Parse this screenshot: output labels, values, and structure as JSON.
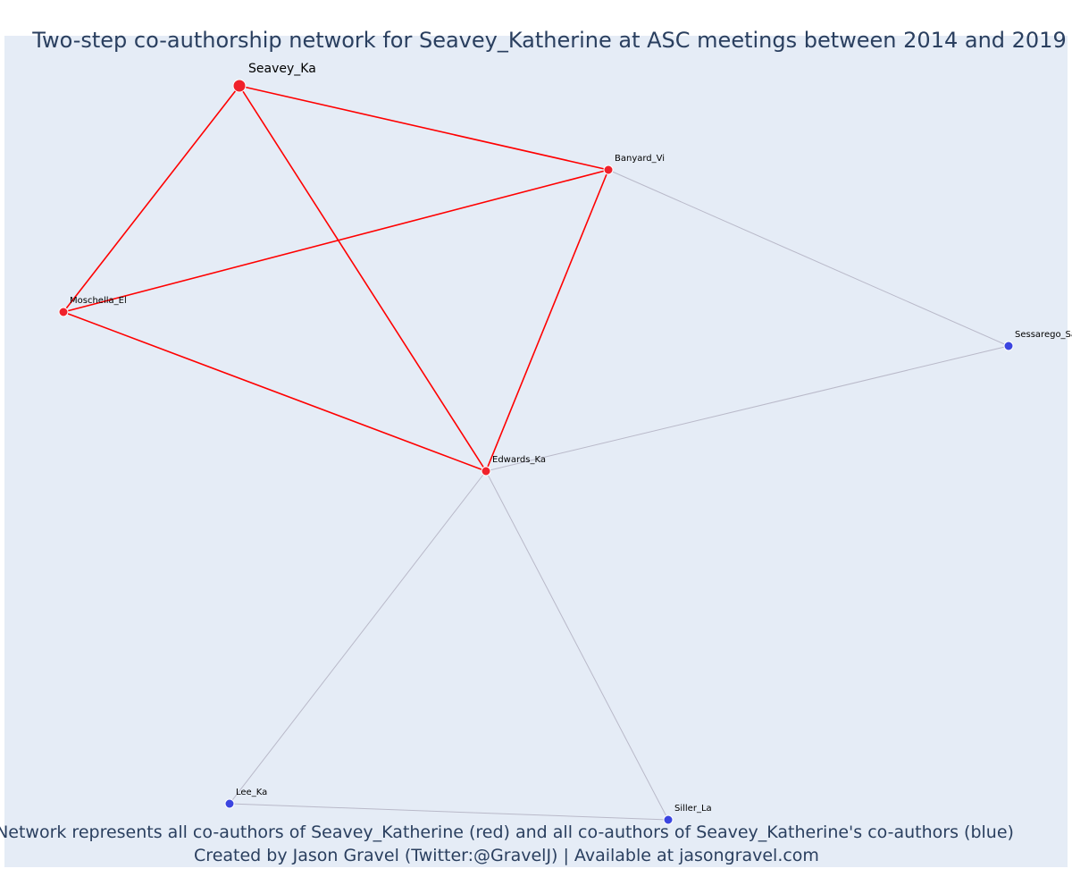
{
  "title": "Two-step co-authorship network for Seavey_Katherine at ASC meetings between 2014 and 2019",
  "footer": {
    "line1": "Network represents all co-authors of Seavey_Katherine (red) and all co-authors of Seavey_Katherine's co-authors (blue)",
    "line2": "Created by Jason Gravel (Twitter:@GravelJ) | Available at jasongravel.com"
  },
  "colors": {
    "background": "#e5ecf6",
    "coauthor": "#f0212b",
    "second_step": "#3b45e0",
    "edge_direct": "#ff0000",
    "edge_other": "#b9b9c9",
    "text": "#2a3f5f"
  },
  "nodes": [
    {
      "id": "seavey",
      "label": "Seavey_Ka",
      "group": "focus"
    },
    {
      "id": "banyard",
      "label": "Banyard_Vi",
      "group": "coauthor"
    },
    {
      "id": "moschella",
      "label": "Moschella_El",
      "group": "coauthor"
    },
    {
      "id": "edwards",
      "label": "Edwards_Ka",
      "group": "coauthor"
    },
    {
      "id": "sessarego",
      "label": "Sessarego_Sa",
      "group": "second"
    },
    {
      "id": "lee",
      "label": "Lee_Ka",
      "group": "second"
    },
    {
      "id": "siller",
      "label": "Siller_La",
      "group": "second"
    }
  ],
  "edges": [
    {
      "source": "seavey",
      "target": "banyard",
      "type": "direct"
    },
    {
      "source": "seavey",
      "target": "moschella",
      "type": "direct"
    },
    {
      "source": "seavey",
      "target": "edwards",
      "type": "direct"
    },
    {
      "source": "banyard",
      "target": "moschella",
      "type": "direct"
    },
    {
      "source": "banyard",
      "target": "edwards",
      "type": "direct"
    },
    {
      "source": "moschella",
      "target": "edwards",
      "type": "direct"
    },
    {
      "source": "banyard",
      "target": "sessarego",
      "type": "other"
    },
    {
      "source": "edwards",
      "target": "sessarego",
      "type": "other"
    },
    {
      "source": "edwards",
      "target": "lee",
      "type": "other"
    },
    {
      "source": "edwards",
      "target": "siller",
      "type": "other"
    },
    {
      "source": "lee",
      "target": "siller",
      "type": "other"
    }
  ]
}
